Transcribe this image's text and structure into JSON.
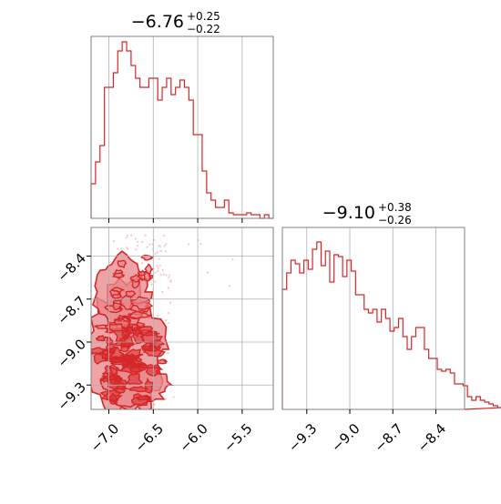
{
  "chart_data": [
    {
      "type": "histogram",
      "panel": "top-left",
      "title_main": "−6.76",
      "title_plus": "+0.25",
      "title_minus": "−0.22",
      "xlim": [
        -7.2,
        -5.15
      ],
      "grid": true,
      "bin_edges_start": -7.2,
      "bin_width": 0.05,
      "counts": [
        0.19,
        0.31,
        0.4,
        0.72,
        0.72,
        0.8,
        0.92,
        0.97,
        0.92,
        0.84,
        0.77,
        0.72,
        0.72,
        0.77,
        0.77,
        0.65,
        0.72,
        0.77,
        0.68,
        0.72,
        0.76,
        0.72,
        0.65,
        0.46,
        0.46,
        0.26,
        0.14,
        0.1,
        0.06,
        0.06,
        0.1,
        0.03,
        0.02,
        0.02,
        0.02,
        0.03,
        0.02,
        0.02,
        0.0,
        0.02,
        0.0
      ]
    },
    {
      "type": "contour",
      "panel": "bottom-left",
      "xlim": [
        -7.2,
        -5.15
      ],
      "ylim": [
        -9.47,
        -8.2
      ],
      "xticks": [
        {
          "v": -7.0,
          "label": "−7.0"
        },
        {
          "v": -6.5,
          "label": "−6.5"
        },
        {
          "v": -6.0,
          "label": "−6.0"
        },
        {
          "v": -5.5,
          "label": "−5.5"
        }
      ],
      "yticks": [
        {
          "v": -8.4,
          "label": "−8.4"
        },
        {
          "v": -8.7,
          "label": "−8.7"
        },
        {
          "v": -9.0,
          "label": "−9.0"
        },
        {
          "v": -9.3,
          "label": "−9.3"
        }
      ],
      "grid": true
    },
    {
      "type": "histogram",
      "panel": "bottom-right",
      "title_main": "−9.10",
      "title_plus": "+0.38",
      "title_minus": "−0.26",
      "xlim": [
        -9.47,
        -8.2
      ],
      "xticks": [
        {
          "v": -9.3,
          "label": "−9.3"
        },
        {
          "v": -9.0,
          "label": "−9.0"
        },
        {
          "v": -8.7,
          "label": "−8.7"
        },
        {
          "v": -8.4,
          "label": "−8.4"
        }
      ],
      "grid": true,
      "bin_edges_start": -9.47,
      "bin_width": 0.03,
      "counts": [
        0.66,
        0.75,
        0.82,
        0.8,
        0.75,
        0.82,
        0.77,
        0.88,
        0.92,
        0.79,
        0.87,
        0.7,
        0.85,
        0.84,
        0.73,
        0.82,
        0.76,
        0.63,
        0.63,
        0.55,
        0.53,
        0.55,
        0.48,
        0.55,
        0.5,
        0.43,
        0.45,
        0.5,
        0.4,
        0.33,
        0.4,
        0.45,
        0.45,
        0.33,
        0.28,
        0.28,
        0.22,
        0.21,
        0.22,
        0.2,
        0.14,
        0.14,
        0.13,
        0.07,
        0.05,
        0.07,
        0.05,
        0.04,
        0.03,
        0.02,
        0.01
      ]
    }
  ],
  "colors": {
    "line": "#d62728",
    "fill": "#e8868a",
    "scatter": "#f7c6cb",
    "grid": "#b0b0b0",
    "frame": "#808080"
  }
}
